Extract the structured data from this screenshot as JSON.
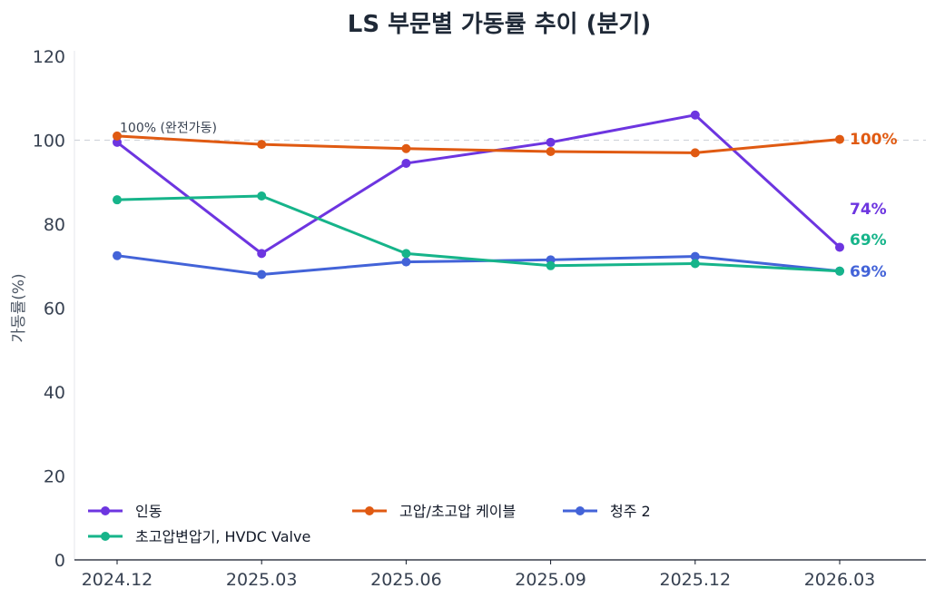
{
  "chart_data": {
    "type": "line",
    "title": "LS 부문별 가동률 추이 (분기)",
    "xlabel": "",
    "ylabel": "가동률(%)",
    "categories": [
      "2024.12",
      "2025.03",
      "2025.06",
      "2025.09",
      "2025.12",
      "2026.03"
    ],
    "ylim": [
      0,
      120
    ],
    "yticks": [
      0,
      20,
      40,
      60,
      80,
      100,
      120
    ],
    "grid": false,
    "legend_placement": "bottom-left",
    "reference_line": {
      "y": 100,
      "label": "100% (완전가동)"
    },
    "series": [
      {
        "name": "인동",
        "color": "#6d35e0",
        "values": [
          99.5,
          73,
          94.5,
          99.5,
          106,
          74.5
        ],
        "end_label": "74%"
      },
      {
        "name": "고압/초고압 케이블",
        "color": "#e05a12",
        "values": [
          101,
          99,
          98,
          97.3,
          97,
          100.2
        ],
        "end_label": "100%"
      },
      {
        "name": "청주 2",
        "color": "#4363d8",
        "values": [
          72.5,
          68,
          71,
          71.5,
          72.3,
          68.8
        ],
        "end_label": "69%"
      },
      {
        "name": "초고압변압기, HVDC Valve",
        "color": "#16b48a",
        "values": [
          85.8,
          86.7,
          73,
          70.1,
          70.6,
          68.8
        ],
        "end_label": "69%"
      }
    ]
  }
}
